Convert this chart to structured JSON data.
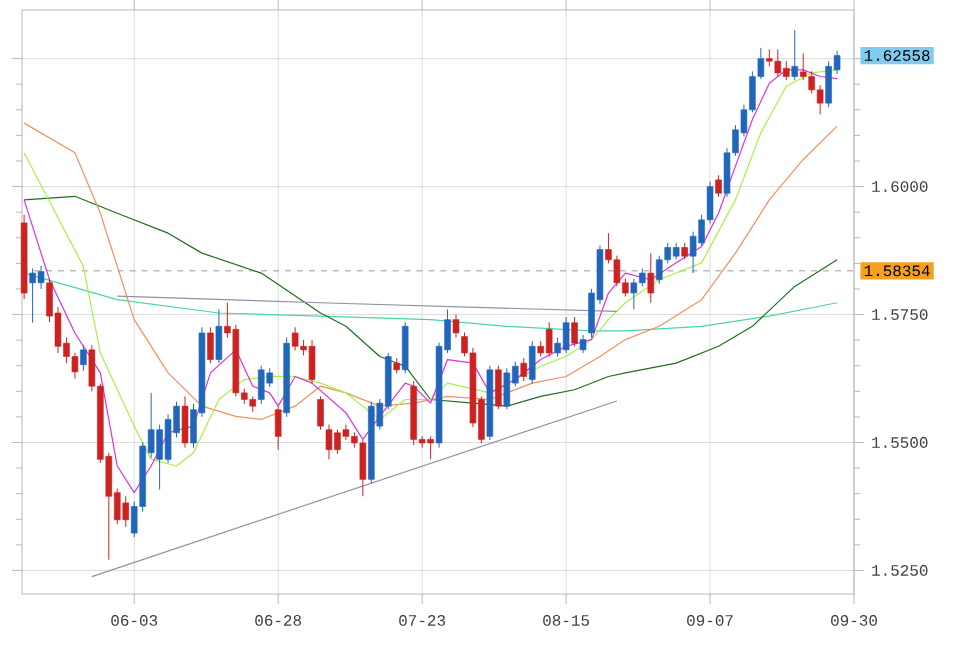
{
  "chart_data": {
    "type": "candlestick",
    "categories": [
      null,
      null,
      null,
      null,
      null,
      null,
      null,
      null,
      null,
      null,
      null,
      null,
      null,
      "06-03",
      null,
      null,
      null,
      null,
      null,
      null,
      null,
      null,
      null,
      null,
      null,
      null,
      null,
      null,
      null,
      null,
      "06-28",
      null,
      null,
      null,
      null,
      null,
      null,
      null,
      null,
      null,
      null,
      null,
      null,
      null,
      null,
      null,
      null,
      "07-23",
      null,
      null,
      null,
      null,
      null,
      null,
      null,
      null,
      null,
      null,
      null,
      null,
      null,
      null,
      null,
      null,
      "08-15",
      null,
      null,
      null,
      null,
      null,
      null,
      null,
      null,
      null,
      null,
      null,
      null,
      null,
      null,
      null,
      null,
      "09-07",
      null,
      null,
      null,
      null,
      null,
      null,
      null,
      null,
      null,
      null,
      null,
      null,
      null,
      null,
      null,
      null,
      "09-30"
    ],
    "ohlc": [
      [
        1.5929,
        1.5945,
        1.578,
        1.5792
      ],
      [
        1.5812,
        1.584,
        1.5734,
        1.5831
      ],
      [
        1.5812,
        1.5845,
        1.58,
        1.5834
      ],
      [
        1.5812,
        1.582,
        1.5735,
        1.5747
      ],
      [
        1.5753,
        1.5765,
        1.5675,
        1.5688
      ],
      [
        1.5694,
        1.5705,
        1.5655,
        1.5668
      ],
      [
        1.5668,
        1.5675,
        1.5625,
        1.5638
      ],
      [
        1.5652,
        1.569,
        1.564,
        1.5681
      ],
      [
        1.5681,
        1.569,
        1.56,
        1.561
      ],
      [
        1.561,
        1.5615,
        1.546,
        1.5467
      ],
      [
        1.5473,
        1.548,
        1.5271,
        1.5395
      ],
      [
        1.5402,
        1.541,
        1.534,
        1.5349
      ],
      [
        1.5382,
        1.5395,
        1.5335,
        1.5349
      ],
      [
        1.5323,
        1.5385,
        1.5315,
        1.5375
      ],
      [
        1.5375,
        1.55,
        1.5365,
        1.5493
      ],
      [
        1.548,
        1.5597,
        1.547,
        1.5525
      ],
      [
        1.5467,
        1.5535,
        1.5408,
        1.5525
      ],
      [
        1.5467,
        1.5555,
        1.546,
        1.5545
      ],
      [
        1.5519,
        1.558,
        1.551,
        1.5571
      ],
      [
        1.5571,
        1.559,
        1.549,
        1.5499
      ],
      [
        1.5499,
        1.5575,
        1.549,
        1.5564
      ],
      [
        1.5558,
        1.5725,
        1.555,
        1.5714
      ],
      [
        1.5714,
        1.5725,
        1.5655,
        1.5662
      ],
      [
        1.5662,
        1.576,
        1.5655,
        1.5727
      ],
      [
        1.5727,
        1.5773,
        1.5705,
        1.5714
      ],
      [
        1.5721,
        1.573,
        1.559,
        1.5597
      ],
      [
        1.5597,
        1.5605,
        1.5575,
        1.5584
      ],
      [
        1.5584,
        1.559,
        1.556,
        1.5571
      ],
      [
        1.5584,
        1.565,
        1.5575,
        1.5642
      ],
      [
        1.5616,
        1.5645,
        1.5608,
        1.5636
      ],
      [
        1.5564,
        1.557,
        1.5486,
        1.5512
      ],
      [
        1.5558,
        1.5705,
        1.555,
        1.5694
      ],
      [
        1.5714,
        1.5725,
        1.568,
        1.5688
      ],
      [
        1.5688,
        1.57,
        1.567,
        1.5681
      ],
      [
        1.5688,
        1.57,
        1.5615,
        1.5623
      ],
      [
        1.5584,
        1.559,
        1.5525,
        1.5532
      ],
      [
        1.5525,
        1.5535,
        1.5467,
        1.5486
      ],
      [
        1.5519,
        1.5525,
        1.5478,
        1.5486
      ],
      [
        1.5525,
        1.5535,
        1.5505,
        1.5512
      ],
      [
        1.5512,
        1.552,
        1.549,
        1.5499
      ],
      [
        1.5499,
        1.5505,
        1.5395,
        1.5428
      ],
      [
        1.5428,
        1.558,
        1.542,
        1.5571
      ],
      [
        1.5532,
        1.5585,
        1.5525,
        1.5577
      ],
      [
        1.5571,
        1.5675,
        1.5565,
        1.5668
      ],
      [
        1.5655,
        1.5665,
        1.5635,
        1.5642
      ],
      [
        1.5642,
        1.5735,
        1.5635,
        1.5727
      ],
      [
        1.561,
        1.562,
        1.5495,
        1.5506
      ],
      [
        1.5506,
        1.5512,
        1.549,
        1.5499
      ],
      [
        1.5506,
        1.5512,
        1.5467,
        1.5499
      ],
      [
        1.5499,
        1.5695,
        1.549,
        1.5688
      ],
      [
        1.5681,
        1.576,
        1.5675,
        1.574
      ],
      [
        1.574,
        1.575,
        1.5705,
        1.5714
      ],
      [
        1.5707,
        1.5715,
        1.5668,
        1.5675
      ],
      [
        1.5675,
        1.5685,
        1.553,
        1.5538
      ],
      [
        1.5584,
        1.559,
        1.5499,
        1.5506
      ],
      [
        1.5512,
        1.565,
        1.5505,
        1.5642
      ],
      [
        1.5642,
        1.565,
        1.5565,
        1.5571
      ],
      [
        1.5571,
        1.5645,
        1.5565,
        1.5636
      ],
      [
        1.5616,
        1.5658,
        1.561,
        1.5649
      ],
      [
        1.5655,
        1.5665,
        1.562,
        1.5629
      ],
      [
        1.5623,
        1.5698,
        1.5615,
        1.5688
      ],
      [
        1.5688,
        1.5698,
        1.5668,
        1.5675
      ],
      [
        1.5721,
        1.5735,
        1.5668,
        1.5675
      ],
      [
        1.5675,
        1.5705,
        1.5668,
        1.5694
      ],
      [
        1.5681,
        1.5745,
        1.5675,
        1.5734
      ],
      [
        1.5734,
        1.5745,
        1.5688,
        1.5694
      ],
      [
        1.5681,
        1.571,
        1.5675,
        1.5701
      ],
      [
        1.5714,
        1.58,
        1.5705,
        1.5792
      ],
      [
        1.5779,
        1.5885,
        1.577,
        1.5877
      ],
      [
        1.5877,
        1.5909,
        1.585,
        1.5857
      ],
      [
        1.5857,
        1.5865,
        1.5805,
        1.5812
      ],
      [
        1.5812,
        1.582,
        1.5785,
        1.5792
      ],
      [
        1.5792,
        1.582,
        1.576,
        1.5812
      ],
      [
        1.5812,
        1.584,
        1.5805,
        1.5831
      ],
      [
        1.5831,
        1.587,
        1.5773,
        1.5792
      ],
      [
        1.5818,
        1.5865,
        1.581,
        1.5857
      ],
      [
        1.5857,
        1.589,
        1.585,
        1.5881
      ],
      [
        1.5864,
        1.589,
        1.5858,
        1.5881
      ],
      [
        1.5881,
        1.589,
        1.5858,
        1.5864
      ],
      [
        1.5864,
        1.5912,
        1.5831,
        1.5903
      ],
      [
        1.589,
        1.5945,
        1.5885,
        1.5935
      ],
      [
        1.5935,
        1.601,
        1.5928,
        1.6
      ],
      [
        1.6013,
        1.6022,
        1.598,
        1.5987
      ],
      [
        1.5987,
        1.6075,
        1.598,
        1.6066
      ],
      [
        1.6066,
        1.612,
        1.606,
        1.6111
      ],
      [
        1.6105,
        1.616,
        1.6098,
        1.615
      ],
      [
        1.615,
        1.6225,
        1.6145,
        1.6215
      ],
      [
        1.6215,
        1.6271,
        1.621,
        1.625
      ],
      [
        1.625,
        1.6268,
        1.6235,
        1.6245
      ],
      [
        1.6245,
        1.6268,
        1.6215,
        1.6222
      ],
      [
        1.6231,
        1.6245,
        1.6208,
        1.6215
      ],
      [
        1.6215,
        1.6306,
        1.6208,
        1.6235
      ],
      [
        1.6224,
        1.626,
        1.6208,
        1.6215
      ],
      [
        1.6215,
        1.6225,
        1.6182,
        1.6189
      ],
      [
        1.6189,
        1.6198,
        1.6141,
        1.6163
      ],
      [
        1.6163,
        1.6245,
        1.6155,
        1.6235
      ],
      [
        1.6228,
        1.6265,
        1.622,
        1.6256
      ],
      null,
      null
    ],
    "colors": [
      "#cc2222",
      "#2266bb",
      "#2266bb",
      "#cc2222",
      "#cc2222",
      "#cc2222",
      "#cc2222",
      "#2266bb",
      "#cc2222",
      "#cc2222",
      "#cc2222",
      "#cc2222",
      "#cc2222",
      "#2266bb",
      "#2266bb",
      "#2266bb",
      "#2266bb",
      "#2266bb",
      "#2266bb",
      "#cc2222",
      "#2266bb",
      "#2266bb",
      "#cc2222",
      "#2266bb",
      "#cc2222",
      "#cc2222",
      "#cc2222",
      "#cc2222",
      "#2266bb",
      "#2266bb",
      "#cc2222",
      "#2266bb",
      "#cc2222",
      "#cc2222",
      "#cc2222",
      "#cc2222",
      "#cc2222",
      "#cc2222",
      "#cc2222",
      "#cc2222",
      "#cc2222",
      "#2266bb",
      "#2266bb",
      "#2266bb",
      "#cc2222",
      "#2266bb",
      "#cc2222",
      "#cc2222",
      "#cc2222",
      "#2266bb",
      "#2266bb",
      "#cc2222",
      "#cc2222",
      "#cc2222",
      "#cc2222",
      "#2266bb",
      "#cc2222",
      "#2266bb",
      "#2266bb",
      "#cc2222",
      "#2266bb",
      "#cc2222",
      "#cc2222",
      "#2266bb",
      "#2266bb",
      "#cc2222",
      "#2266bb",
      "#2266bb",
      "#2266bb",
      "#cc2222",
      "#cc2222",
      "#cc2222",
      "#2266bb",
      "#2266bb",
      "#cc2222",
      "#2266bb",
      "#2266bb",
      "#2266bb",
      "#cc2222",
      "#2266bb",
      "#2266bb",
      "#2266bb",
      "#cc2222",
      "#2266bb",
      "#2266bb",
      "#2266bb",
      "#2266bb",
      "#2266bb",
      "#cc2222",
      "#cc2222",
      "#cc2222",
      "#2266bb",
      "#cc2222",
      "#cc2222",
      "#cc2222",
      "#2266bb",
      "#2266bb",
      null,
      null
    ],
    "series": [
      {
        "type": "line",
        "color": "#48d8a0",
        "values": [
          1.5831,
          null,
          null,
          null,
          null,
          null,
          null,
          null,
          null,
          null,
          null,
          1.5779,
          null,
          null,
          null,
          null,
          null,
          null,
          null,
          null,
          null,
          null,
          null,
          1.5753,
          null,
          null,
          null,
          null,
          null,
          null,
          null,
          null,
          null,
          null,
          null,
          1.5747,
          null,
          null,
          null,
          null,
          null,
          null,
          null,
          null,
          null,
          null,
          null,
          null,
          1.574,
          null,
          null,
          null,
          null,
          null,
          null,
          null,
          null,
          1.5727,
          null,
          null,
          null,
          null,
          null,
          null,
          null,
          null,
          null,
          1.5718,
          null,
          null,
          null,
          1.5718,
          null,
          null,
          null,
          null,
          null,
          null,
          null,
          null,
          1.5727,
          null,
          null,
          null,
          null,
          null,
          null,
          null,
          1.5747,
          null,
          null,
          null,
          null,
          null,
          null,
          null,
          1.5773,
          null,
          null
        ]
      },
      {
        "type": "line",
        "color": "#1e6e1e",
        "values": [
          1.5974,
          null,
          null,
          null,
          null,
          null,
          1.5981,
          null,
          null,
          null,
          null,
          1.5948,
          null,
          null,
          null,
          null,
          null,
          1.5909,
          null,
          null,
          null,
          1.587,
          null,
          null,
          null,
          null,
          null,
          null,
          1.5831,
          null,
          null,
          null,
          null,
          null,
          null,
          1.5753,
          null,
          null,
          1.5727,
          null,
          null,
          null,
          1.5668,
          null,
          null,
          1.5649,
          null,
          null,
          1.5584,
          null,
          null,
          null,
          null,
          1.5577,
          null,
          null,
          null,
          1.5571,
          null,
          null,
          null,
          1.559,
          null,
          null,
          null,
          1.5603,
          null,
          null,
          null,
          1.5629,
          null,
          1.5636,
          null,
          null,
          null,
          null,
          null,
          1.5655,
          null,
          null,
          null,
          null,
          1.5688,
          null,
          null,
          null,
          1.5727,
          null,
          null,
          null,
          null,
          1.5805,
          null,
          null,
          null,
          null,
          1.5857,
          null,
          null
        ]
      },
      {
        "type": "line",
        "color": "#f09060",
        "values": [
          1.6124,
          null,
          null,
          null,
          null,
          null,
          1.6066,
          null,
          null,
          1.5948,
          null,
          null,
          null,
          1.574,
          null,
          null,
          null,
          1.5636,
          null,
          null,
          null,
          1.5571,
          null,
          null,
          null,
          1.5551,
          null,
          null,
          1.5545,
          null,
          null,
          null,
          1.5571,
          null,
          null,
          1.561,
          null,
          null,
          1.5597,
          null,
          null,
          null,
          1.5571,
          null,
          null,
          null,
          1.5577,
          null,
          null,
          null,
          1.559,
          null,
          null,
          null,
          null,
          1.5584,
          null,
          null,
          null,
          null,
          1.5616,
          null,
          null,
          null,
          1.5629,
          null,
          null,
          null,
          1.5668,
          null,
          null,
          1.5701,
          null,
          null,
          null,
          1.5727,
          null,
          null,
          null,
          null,
          1.5779,
          null,
          null,
          null,
          1.587,
          null,
          null,
          null,
          1.5974,
          null,
          null,
          null,
          1.6053,
          null,
          null,
          null,
          1.6118,
          null,
          null
        ]
      },
      {
        "type": "line",
        "color": "#a8f048",
        "values": [
          1.6066,
          null,
          null,
          null,
          null,
          null,
          null,
          1.5844,
          null,
          1.5675,
          null,
          null,
          null,
          1.5532,
          null,
          1.5467,
          null,
          null,
          1.5454,
          null,
          1.548,
          null,
          null,
          1.5584,
          null,
          null,
          1.5623,
          null,
          null,
          1.5629,
          null,
          null,
          1.5629,
          null,
          null,
          1.5616,
          null,
          null,
          1.5597,
          null,
          null,
          null,
          1.5545,
          null,
          null,
          1.5584,
          null,
          null,
          1.5584,
          null,
          1.5616,
          null,
          null,
          null,
          null,
          1.5597,
          null,
          null,
          1.5623,
          null,
          null,
          1.5649,
          null,
          null,
          1.5668,
          null,
          null,
          1.5701,
          null,
          1.574,
          null,
          1.5773,
          null,
          null,
          null,
          1.5818,
          null,
          null,
          null,
          null,
          1.5851,
          null,
          null,
          null,
          1.5974,
          null,
          null,
          1.6105,
          null,
          null,
          1.6196,
          null,
          null,
          1.6222,
          null,
          null,
          1.6228,
          null,
          null
        ]
      },
      {
        "type": "line",
        "color": "#e030e0",
        "values": [
          1.5974,
          null,
          null,
          1.5818,
          null,
          null,
          1.5714,
          null,
          null,
          1.5636,
          null,
          1.5454,
          null,
          1.5402,
          null,
          1.5454,
          null,
          1.5519,
          null,
          null,
          1.5532,
          null,
          1.5636,
          null,
          null,
          1.5681,
          null,
          1.561,
          null,
          1.5597,
          1.5571,
          null,
          1.5629,
          null,
          1.5616,
          null,
          null,
          null,
          1.5558,
          null,
          1.5506,
          null,
          1.5551,
          null,
          null,
          1.5616,
          1.561,
          null,
          1.5577,
          null,
          1.5662,
          null,
          null,
          1.5655,
          null,
          1.5597,
          null,
          null,
          1.5623,
          null,
          null,
          1.5662,
          null,
          null,
          1.5688,
          null,
          null,
          1.5701,
          null,
          1.5792,
          null,
          1.5831,
          null,
          null,
          1.5818,
          null,
          null,
          1.5851,
          null,
          null,
          1.5883,
          null,
          1.5948,
          null,
          1.604,
          null,
          1.6131,
          null,
          1.6202,
          null,
          1.6228,
          null,
          1.6228,
          null,
          1.6215,
          null,
          1.6211,
          null,
          null
        ]
      },
      {
        "type": "line",
        "color": "#9090a8",
        "values": [
          null,
          null,
          null,
          null,
          null,
          null,
          null,
          null,
          null,
          null,
          null,
          1.5786,
          null,
          null,
          null,
          null,
          null,
          null,
          null,
          null,
          null,
          null,
          null,
          null,
          null,
          null,
          null,
          null,
          null,
          null,
          null,
          null,
          null,
          null,
          null,
          1.5773,
          null,
          null,
          null,
          null,
          null,
          null,
          null,
          null,
          null,
          null,
          null,
          null,
          null,
          null,
          null,
          null,
          null,
          null,
          null,
          null,
          null,
          null,
          null,
          null,
          null,
          null,
          null,
          null,
          null,
          null,
          null,
          null,
          null,
          null,
          1.5756,
          null,
          null,
          null,
          null,
          null,
          null,
          null,
          null,
          null,
          null,
          null,
          null,
          null,
          null,
          null,
          null,
          null,
          null,
          null,
          null,
          null,
          null,
          null,
          null,
          null,
          null,
          null,
          null
        ]
      },
      {
        "type": "line",
        "color": "#9090a8",
        "values": [
          null,
          null,
          null,
          null,
          null,
          null,
          null,
          null,
          1.5238,
          null,
          null,
          null,
          null,
          null,
          null,
          null,
          null,
          null,
          null,
          null,
          null,
          null,
          null,
          null,
          null,
          null,
          null,
          null,
          null,
          null,
          null,
          null,
          null,
          null,
          null,
          null,
          null,
          null,
          null,
          null,
          null,
          null,
          null,
          null,
          null,
          null,
          null,
          null,
          null,
          null,
          null,
          null,
          null,
          null,
          null,
          null,
          null,
          null,
          null,
          null,
          null,
          null,
          null,
          null,
          null,
          null,
          null,
          null,
          null,
          null,
          1.5581,
          null,
          null,
          null,
          null,
          null,
          null,
          null,
          null,
          null,
          null,
          null,
          null,
          null,
          null,
          null,
          null,
          null,
          null,
          null,
          null,
          null,
          null,
          null,
          null,
          null,
          null,
          null,
          null
        ]
      }
    ],
    "ylim": [
      1.5204,
      1.6345
    ],
    "yticks": [
      {
        "value": 1.525,
        "label": "1.5250"
      },
      {
        "value": 1.55,
        "label": "1.5500"
      },
      {
        "value": 1.575,
        "label": "1.5750"
      },
      {
        "value": 1.6,
        "label": "1.6000"
      },
      {
        "value": 1.625,
        "label": null
      }
    ],
    "ref_lines": [
      {
        "axis": "y",
        "value": 1.58354,
        "label": "1.58354",
        "line_style": "dashed"
      }
    ],
    "annotations": [
      "1.62558"
    ],
    "grid": true,
    "marker": "none"
  }
}
